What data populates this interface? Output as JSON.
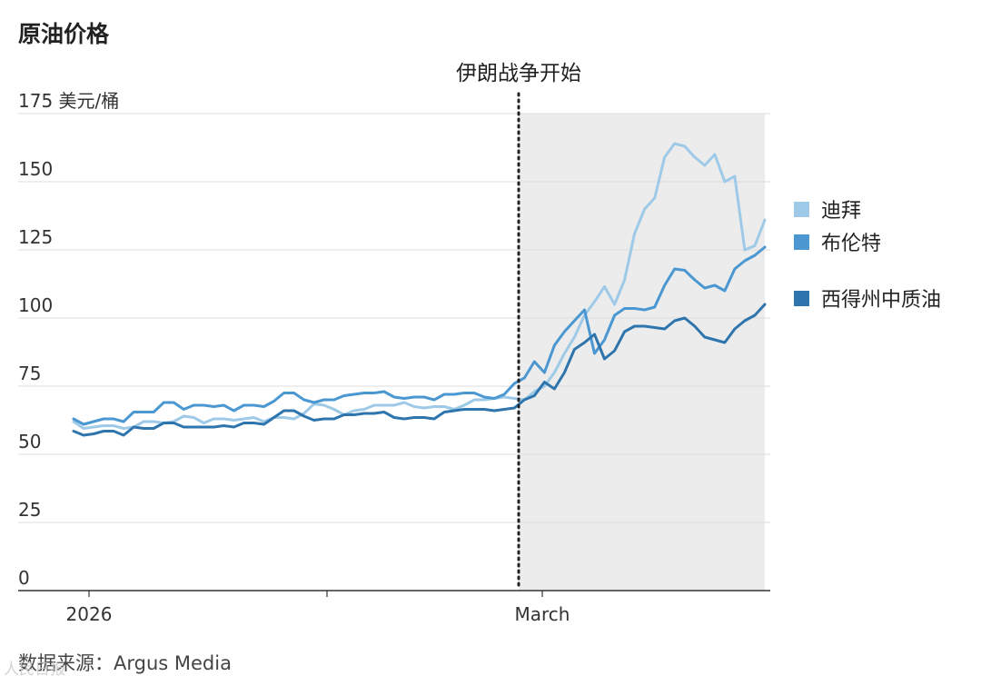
{
  "title": "原油价格",
  "source": "数据来源：Argus Media",
  "watermark": "人民日报",
  "chart_data": {
    "type": "line",
    "ylim": [
      0,
      175
    ],
    "yticks": [
      0,
      25,
      50,
      75,
      100,
      125,
      150,
      175
    ],
    "ytick_labels": [
      "0",
      "25",
      "50",
      "75",
      "100",
      "125",
      "150",
      "175 美元/桶"
    ],
    "xlabels": [
      "2026",
      "March"
    ],
    "grid": true,
    "legend_position": "right",
    "annotation": {
      "text": "伊朗战争开始",
      "style": "dotted vertical line; shaded region after it"
    },
    "series": [
      {
        "name": "迪拜",
        "color": "#9ecae8",
        "values": [
          62,
          59.5,
          60,
          60.5,
          60.5,
          59.5,
          60,
          62,
          62,
          61.5,
          62,
          64,
          63.5,
          61.5,
          63,
          63,
          62.5,
          63,
          63.5,
          62,
          63.5,
          63.5,
          63,
          65,
          68.5,
          68,
          66.5,
          64.5,
          66,
          66.5,
          68,
          68,
          68,
          69,
          67.5,
          67,
          67.5,
          67.5,
          66.5,
          68,
          70,
          70,
          70.5,
          71,
          70.5,
          70,
          73,
          75,
          80,
          87,
          93,
          101,
          106,
          111.5,
          105,
          114,
          131,
          140,
          144,
          159,
          164,
          163,
          159,
          156,
          160,
          150,
          152,
          125,
          126.5,
          136
        ]
      },
      {
        "name": "布伦特",
        "color": "#4a97d1",
        "values": [
          63,
          61,
          62,
          63,
          63,
          62,
          65.5,
          65.5,
          65.5,
          69,
          69,
          66.5,
          68,
          68,
          67.5,
          68,
          66,
          68,
          68,
          67.5,
          69.5,
          72.5,
          72.5,
          70,
          69,
          70,
          70,
          71.5,
          72,
          72.5,
          72.5,
          73,
          71,
          70.5,
          71,
          71,
          70,
          72,
          72,
          72.5,
          72.5,
          71,
          70.5,
          72,
          76,
          78,
          84,
          80,
          90,
          95,
          99,
          103,
          87,
          92,
          101,
          103.5,
          103.5,
          103,
          104,
          112,
          118,
          117.5,
          114,
          111,
          112,
          110,
          118,
          121,
          123,
          126
        ]
      },
      {
        "name": "西得州中质油",
        "color": "#2f75ad",
        "values": [
          58.5,
          57,
          57.5,
          58.5,
          58.5,
          57,
          60,
          59.5,
          59.5,
          61.5,
          61.5,
          60,
          60,
          60,
          60,
          60.5,
          60,
          61.5,
          61.5,
          61,
          63.5,
          66,
          66,
          64,
          62.5,
          63,
          63,
          64.5,
          64.5,
          65,
          65,
          65.5,
          63.5,
          63,
          63.5,
          63.5,
          63,
          65.5,
          66,
          66.5,
          66.5,
          66.5,
          66,
          66.5,
          67,
          70,
          71.5,
          76.5,
          74,
          80,
          88.5,
          91,
          94,
          85,
          88,
          95,
          97,
          97,
          96.5,
          96,
          99,
          100,
          97,
          93,
          92,
          91,
          96,
          99,
          101,
          105
        ]
      }
    ]
  }
}
